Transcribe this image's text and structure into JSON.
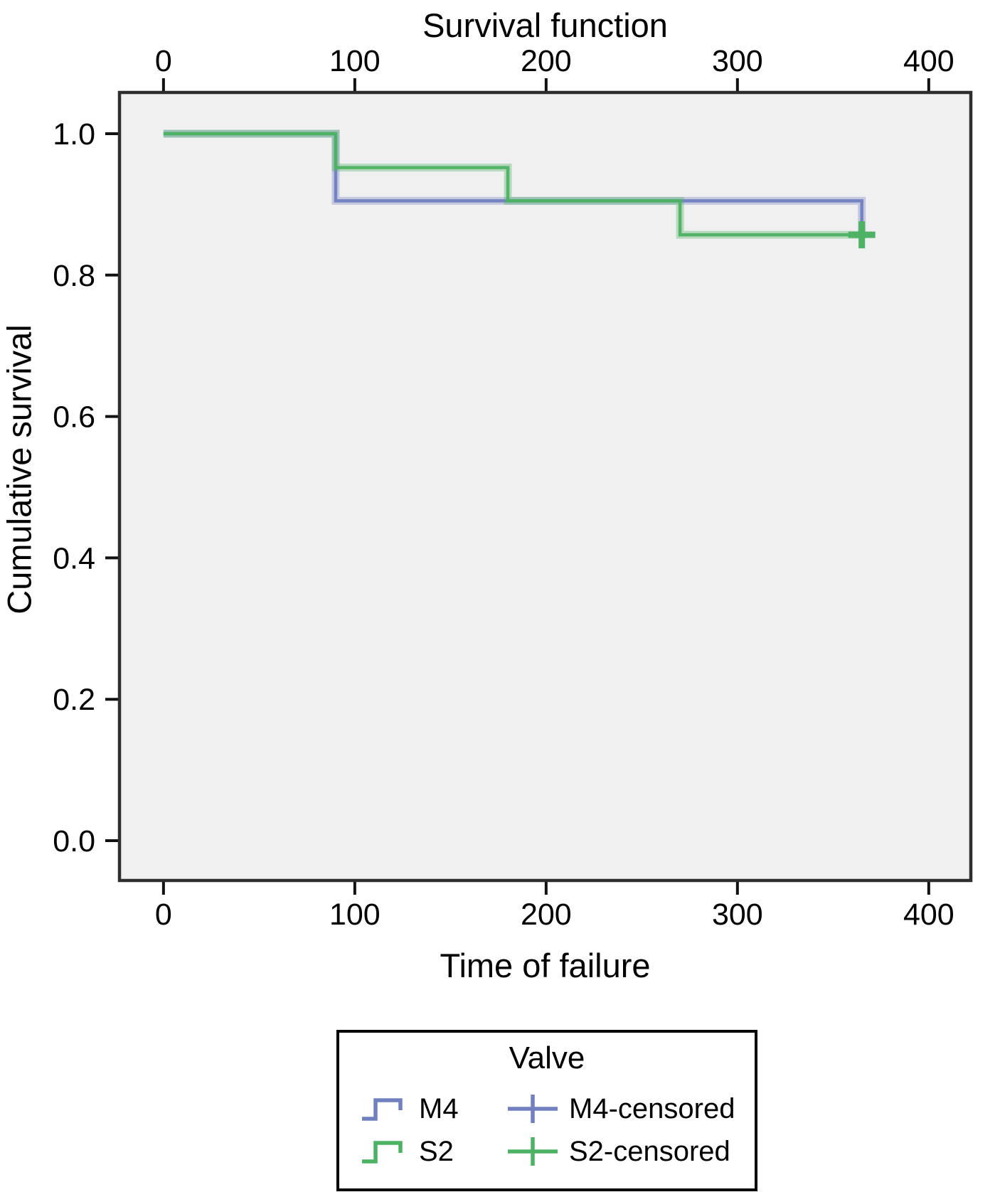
{
  "figure": {
    "title": "Survival function",
    "x_axis_label": "Time of failure",
    "y_axis_label": "Cumulative survival"
  },
  "legend": {
    "title": "Valve",
    "entries": [
      {
        "label": "M4",
        "glyph": "step-line",
        "color": "#7280c0"
      },
      {
        "label": "M4-censored",
        "glyph": "plus-censored",
        "color": "#7280c0"
      },
      {
        "label": "S2",
        "glyph": "step-line",
        "color": "#4db263"
      },
      {
        "label": "S2-censored",
        "glyph": "plus-censored",
        "color": "#4db263"
      }
    ]
  },
  "chart_data": {
    "type": "line",
    "subtype": "kaplan-meier-step",
    "title": "Survival function",
    "xlabel": "Time of failure",
    "ylabel": "Cumulative survival",
    "xlim": [
      -23,
      422
    ],
    "ylim": [
      -0.0563,
      1.0583
    ],
    "x_ticks": [
      0,
      100,
      200,
      300,
      400
    ],
    "y_ticks": [
      0.0,
      0.2,
      0.4,
      0.6,
      0.8,
      1.0
    ],
    "x_tick_labels": [
      "0",
      "100",
      "200",
      "300",
      "400"
    ],
    "y_tick_labels": [
      "0.0",
      "0.2",
      "0.4",
      "0.6",
      "0.8",
      "1.0"
    ],
    "grid": false,
    "legend_position": "below",
    "plot_background": "#f0f0f0",
    "axis_border_color": "#2e2e2e",
    "tick_color": "#111111",
    "series": [
      {
        "name": "M4",
        "color": "#7280c0",
        "points": [
          [
            0,
            1.0
          ],
          [
            90,
            1.0
          ],
          [
            90,
            0.905
          ],
          [
            365,
            0.905
          ],
          [
            365,
            0.857
          ]
        ]
      },
      {
        "name": "S2",
        "color": "#4db263",
        "points": [
          [
            0,
            1.0
          ],
          [
            90,
            1.0
          ],
          [
            90,
            0.952
          ],
          [
            180,
            0.952
          ],
          [
            180,
            0.905
          ],
          [
            270,
            0.905
          ],
          [
            270,
            0.857
          ],
          [
            365,
            0.857
          ]
        ]
      }
    ],
    "censored_points": [
      {
        "series": "S2",
        "x": 365,
        "y": 0.857
      }
    ]
  }
}
